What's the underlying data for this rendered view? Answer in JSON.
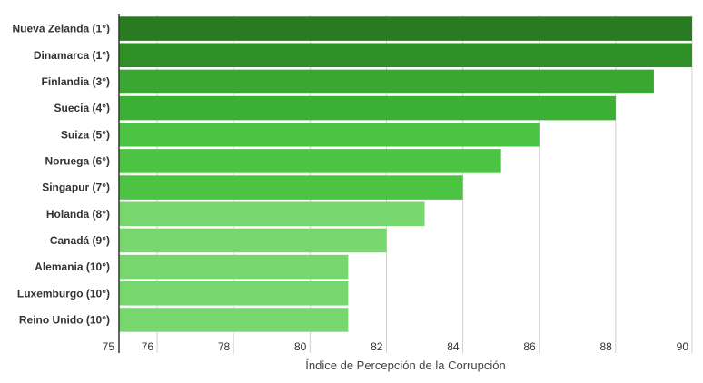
{
  "chart_data": {
    "type": "bar",
    "orientation": "horizontal",
    "title": "",
    "xlabel": "Índice de Percepción de la Corrupción",
    "ylabel": "",
    "xlim": [
      75,
      90
    ],
    "x_ticks": [
      "75",
      "76",
      "78",
      "80",
      "82",
      "84",
      "86",
      "88",
      "90"
    ],
    "x_tick_values": [
      75,
      76,
      78,
      80,
      82,
      84,
      86,
      88,
      90
    ],
    "grid": true,
    "legend": "none",
    "categories": [
      "Nueva Zelanda (1°)",
      "Dinamarca (1°)",
      "Finlandia (3°)",
      "Suecia (4°)",
      "Suiza (5°)",
      "Noruega (6°)",
      "Singapur (7°)",
      "Holanda (8°)",
      "Canadá (9°)",
      "Alemania (10°)",
      "Luxemburgo (10°)",
      "Reino Unido (10°)"
    ],
    "values": [
      90,
      90,
      89,
      88,
      86,
      85,
      84,
      83,
      82,
      81,
      81,
      81
    ],
    "colors": [
      "#2a7a22",
      "#2f8f27",
      "#38a832",
      "#3cb035",
      "#4cc342",
      "#4cc342",
      "#4cc342",
      "#78d66e",
      "#78d66e",
      "#78d66e",
      "#78d66e",
      "#78d66e"
    ]
  }
}
